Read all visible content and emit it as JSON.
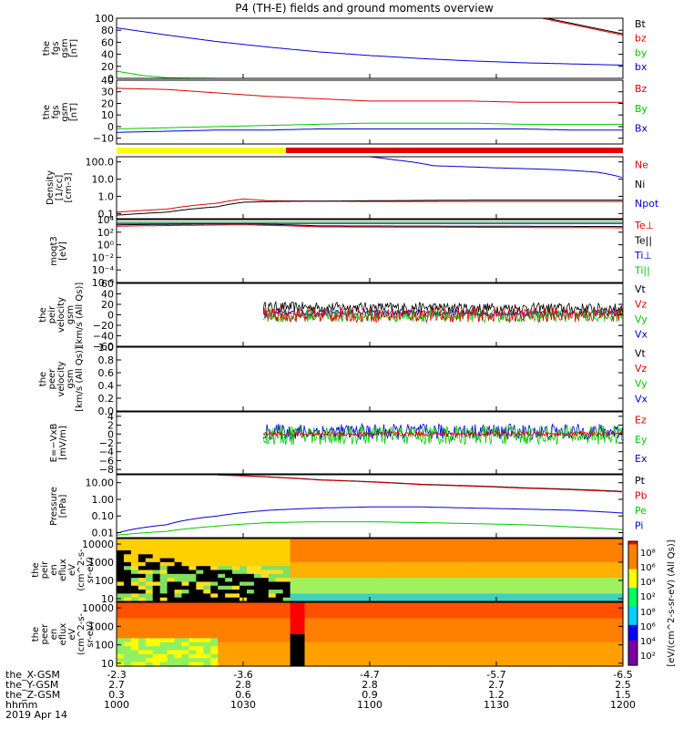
{
  "title": "P4 (TH-E) fields and ground moments overview",
  "date_label": "2019 Apr 14",
  "footer_rows": [
    {
      "label": "the_X-GSM",
      "values": [
        "-2.3",
        "-3.6",
        "-4.7",
        "-5.7",
        "-6.5"
      ]
    },
    {
      "label": "the_Y-GSM",
      "values": [
        "2.7",
        "2.8",
        "2.8",
        "2.7",
        "2.5"
      ]
    },
    {
      "label": "the_Z-GSM",
      "values": [
        "0.3",
        "0.6",
        "0.9",
        "1.2",
        "1.5"
      ]
    },
    {
      "label": "hhmm",
      "values": [
        "1000",
        "1030",
        "1100",
        "1130",
        "1200"
      ]
    }
  ],
  "colors": {
    "black": "#000000",
    "red": "#e00000",
    "green": "#00c800",
    "blue": "#0000d8",
    "yellow": "#ffff00"
  },
  "chart_data": [
    {
      "type": "line",
      "ylabel": [
        "the",
        "fgs",
        "gsm",
        "[nT]"
      ],
      "ylim": [
        0,
        100
      ],
      "ticks": [
        "100",
        "80",
        "60",
        "40",
        "20",
        "0"
      ],
      "tick_values": [
        100,
        80,
        60,
        40,
        20,
        0
      ],
      "xlim": [
        1000,
        1200
      ],
      "legend": [
        {
          "text": "Bt",
          "color": "#000000"
        },
        {
          "text": "bz",
          "color": "#e00000"
        },
        {
          "text": "by",
          "color": "#00c800"
        },
        {
          "text": "bx",
          "color": "#0000d8"
        }
      ],
      "series": [
        {
          "name": "Bt",
          "x": [
            1170,
            1200
          ],
          "y": [
            100,
            74
          ]
        },
        {
          "name": "bz",
          "x": [
            1168,
            1200
          ],
          "y": [
            100,
            72
          ]
        },
        {
          "name": "by",
          "x": [
            1000,
            1010,
            1020,
            1040,
            1100,
            1200
          ],
          "y": [
            12,
            5,
            1,
            0,
            0,
            0
          ]
        },
        {
          "name": "bx",
          "x": [
            1000,
            1020,
            1040,
            1060,
            1080,
            1100,
            1120,
            1140,
            1160,
            1180,
            1200
          ],
          "y": [
            84,
            72,
            61,
            52,
            44,
            38,
            33,
            29,
            26,
            24,
            22
          ]
        }
      ]
    },
    {
      "type": "line",
      "ylabel": [
        "the",
        "fgs",
        "gsm",
        "[nT]"
      ],
      "ylim": [
        -15,
        40
      ],
      "ticks": [
        "40",
        "30",
        "20",
        "10",
        "0",
        "−10"
      ],
      "tick_values": [
        40,
        30,
        20,
        10,
        0,
        -10
      ],
      "xlim": [
        1000,
        1200
      ],
      "legend": [
        {
          "text": "Bz",
          "color": "#e00000"
        },
        {
          "text": "By",
          "color": "#00c800"
        },
        {
          "text": "Bx",
          "color": "#0000d8"
        }
      ],
      "series": [
        {
          "name": "Bz",
          "x": [
            1000,
            1020,
            1040,
            1060,
            1080,
            1100,
            1120,
            1140,
            1160,
            1180,
            1200
          ],
          "y": [
            33,
            32,
            29,
            26,
            24,
            22,
            22,
            22,
            21,
            21,
            21
          ]
        },
        {
          "name": "By",
          "x": [
            1000,
            1020,
            1040,
            1060,
            1080,
            1100,
            1120,
            1140,
            1160,
            1180,
            1200
          ],
          "y": [
            -2,
            -1,
            0,
            1,
            2,
            3,
            3,
            3,
            2,
            2,
            2
          ]
        },
        {
          "name": "Bx",
          "x": [
            1000,
            1020,
            1040,
            1060,
            1080,
            1100,
            1120,
            1140,
            1160,
            1180,
            1200
          ],
          "y": [
            -5,
            -4,
            -3,
            -3,
            -2,
            -2,
            -2,
            -2,
            -2,
            -3,
            -3
          ]
        }
      ]
    },
    {
      "type": "line",
      "ylabel": [
        "Density",
        "[1/cc]",
        "[cm-3]"
      ],
      "yscale": "log",
      "ylim": [
        0.05,
        200
      ],
      "ticks": [
        "100.0",
        "10.0",
        "1.0",
        "0.1"
      ],
      "tick_values": [
        100,
        10,
        1,
        0.1
      ],
      "xlim": [
        1000,
        1200
      ],
      "legend": [
        {
          "text": "Ne",
          "color": "#e00000"
        },
        {
          "text": "Ni",
          "color": "#000000"
        },
        {
          "text": "Npot",
          "color": "#0000d8"
        }
      ],
      "series": [
        {
          "name": "Ne",
          "x": [
            1000,
            1020,
            1040,
            1050,
            1060,
            1100,
            1140,
            1200
          ],
          "y": [
            0.12,
            0.18,
            0.4,
            0.7,
            0.55,
            0.5,
            0.5,
            0.5
          ]
        },
        {
          "name": "Ni",
          "x": [
            1000,
            1020,
            1040,
            1050,
            1060,
            1100,
            1140,
            1200
          ],
          "y": [
            0.08,
            0.12,
            0.25,
            0.45,
            0.5,
            0.55,
            0.6,
            0.6
          ]
        },
        {
          "name": "Npot",
          "x": [
            1100,
            1110,
            1125,
            1150,
            1175,
            1190,
            1200
          ],
          "y": [
            200,
            130,
            60,
            45,
            35,
            25,
            12
          ]
        }
      ]
    },
    {
      "type": "line",
      "ylabel": [
        "moqt3",
        "[eV]"
      ],
      "yscale": "log",
      "ylim": [
        1e-06,
        10000
      ],
      "ticks": [
        "10⁴",
        "10²",
        "10⁰",
        "10⁻²",
        "10⁻⁴",
        "10⁻⁶"
      ],
      "tick_values": [
        10000,
        100,
        1,
        0.01,
        0.0001,
        1e-06
      ],
      "xlim": [
        1000,
        1200
      ],
      "legend": [
        {
          "text": "Te⊥",
          "color": "#e00000"
        },
        {
          "text": "Te||",
          "color": "#000000"
        },
        {
          "text": "Ti⊥",
          "color": "#0000d8"
        },
        {
          "text": "Ti||",
          "color": "#00c800"
        }
      ],
      "series": [
        {
          "name": "Te⊥",
          "x": [
            1000,
            1050,
            1080,
            1200
          ],
          "y": [
            900,
            1500,
            700,
            500
          ]
        },
        {
          "name": "Te||",
          "x": [
            1000,
            1050,
            1080,
            1200
          ],
          "y": [
            1500,
            2200,
            1000,
            800
          ]
        },
        {
          "name": "Ti⊥",
          "x": [
            1000,
            1200
          ],
          "y": [
            2500,
            2500
          ]
        },
        {
          "name": "Ti||",
          "x": [
            1000,
            1200
          ],
          "y": [
            4000,
            4000
          ]
        }
      ]
    },
    {
      "type": "line",
      "ylabel": [
        "the",
        "peir",
        "velocity",
        "gsm",
        "[km/s (All Qs)]"
      ],
      "ylim": [
        -60,
        60
      ],
      "ticks": [
        "60",
        "40",
        "20",
        "0",
        "−20",
        "−40",
        "−60"
      ],
      "tick_values": [
        60,
        40,
        20,
        0,
        -20,
        -40,
        -60
      ],
      "xlim": [
        1000,
        1200
      ],
      "legend": [
        {
          "text": "Vt",
          "color": "#000000"
        },
        {
          "text": "Vz",
          "color": "#e00000"
        },
        {
          "text": "Vy",
          "color": "#00c800"
        },
        {
          "text": "Vx",
          "color": "#0000d8"
        }
      ],
      "series": [
        {
          "name": "Vt",
          "x": [
            1058,
            1200
          ],
          "y": [
            15,
            12
          ],
          "noise": 10
        },
        {
          "name": "Vx",
          "x": [
            1058,
            1200
          ],
          "y": [
            3,
            3
          ],
          "noise": 6
        },
        {
          "name": "Vy",
          "x": [
            1058,
            1200
          ],
          "y": [
            -2,
            -2
          ],
          "noise": 12
        },
        {
          "name": "Vz",
          "x": [
            1058,
            1200
          ],
          "y": [
            0,
            0
          ],
          "noise": 14
        }
      ]
    },
    {
      "type": "line",
      "ylabel": [
        "the",
        "peer",
        "velocity",
        "gsm",
        "[km/s (All Qs)]"
      ],
      "ylim": [
        0,
        1
      ],
      "ticks": [
        "1.0",
        "0.8",
        "0.6",
        "0.4",
        "0.2",
        "0.0"
      ],
      "tick_values": [
        1,
        0.8,
        0.6,
        0.4,
        0.2,
        0
      ],
      "xlim": [
        1000,
        1200
      ],
      "legend": [
        {
          "text": "Vt",
          "color": "#000000"
        },
        {
          "text": "Vz",
          "color": "#e00000"
        },
        {
          "text": "Vy",
          "color": "#00c800"
        },
        {
          "text": "Vx",
          "color": "#0000d8"
        }
      ],
      "series": []
    },
    {
      "type": "line",
      "ylabel": [
        "E=−VxB",
        "[mV/m]"
      ],
      "ylim": [
        -9,
        5
      ],
      "ticks": [
        "4",
        "2",
        "0",
        "−2",
        "−4",
        "−6",
        "−8"
      ],
      "tick_values": [
        4,
        2,
        0,
        -2,
        -4,
        -6,
        -8
      ],
      "xlim": [
        1000,
        1200
      ],
      "legend": [
        {
          "text": "Ez",
          "color": "#e00000"
        },
        {
          "text": "Ey",
          "color": "#00c800"
        },
        {
          "text": "Ex",
          "color": "#0000d8"
        }
      ],
      "series": [
        {
          "name": "Ex",
          "x": [
            1058,
            1200
          ],
          "y": [
            0.5,
            0.5
          ],
          "noise": 1.8
        },
        {
          "name": "Ey",
          "x": [
            1058,
            1200
          ],
          "y": [
            -0.3,
            -0.2
          ],
          "noise": 2.2
        },
        {
          "name": "Ez",
          "x": [
            1058,
            1200
          ],
          "y": [
            0,
            0
          ],
          "noise": 0.5
        }
      ]
    },
    {
      "type": "line",
      "ylabel": [
        "Pressure",
        "[nPa]"
      ],
      "yscale": "log",
      "ylim": [
        0.005,
        30
      ],
      "ticks": [
        "10.00",
        "1.00",
        "0.10",
        "0.01"
      ],
      "tick_values": [
        10,
        1,
        0.1,
        0.01
      ],
      "xlim": [
        1000,
        1200
      ],
      "legend": [
        {
          "text": "Pt",
          "color": "#000000"
        },
        {
          "text": "Pb",
          "color": "#e00000"
        },
        {
          "text": "Pe",
          "color": "#00c800"
        },
        {
          "text": "Pi",
          "color": "#0000d8"
        }
      ],
      "series": [
        {
          "name": "Pt",
          "x": [
            1040,
            1080,
            1120,
            1160,
            1200
          ],
          "y": [
            30,
            15,
            8,
            5,
            3
          ]
        },
        {
          "name": "Pb",
          "x": [
            1040,
            1080,
            1120,
            1160,
            1200
          ],
          "y": [
            29,
            14.5,
            7.6,
            4.7,
            2.8
          ]
        },
        {
          "name": "Pe",
          "x": [
            1000,
            1020,
            1040,
            1060,
            1080,
            1100,
            1120,
            1140,
            1160,
            1180,
            1200
          ],
          "y": [
            0.007,
            0.012,
            0.025,
            0.04,
            0.045,
            0.045,
            0.04,
            0.035,
            0.03,
            0.022,
            0.015
          ]
        },
        {
          "name": "Pi",
          "x": [
            1000,
            1020,
            1040,
            1060,
            1080,
            1100,
            1120,
            1140,
            1160,
            1180,
            1200
          ],
          "y": [
            0.009,
            0.03,
            0.1,
            0.22,
            0.3,
            0.35,
            0.35,
            0.3,
            0.26,
            0.22,
            0.15
          ]
        }
      ]
    },
    {
      "type": "heatmap",
      "ylabel": [
        "the",
        "peir",
        "en",
        "eflux",
        "eV",
        "(cm^2-s-",
        "sr-eV)"
      ],
      "yscale": "log",
      "ylim": [
        7,
        20000
      ],
      "ticks": [
        "10000",
        "1000",
        "100",
        "10"
      ],
      "tick_values": [
        10000,
        1000,
        100,
        10
      ],
      "xlim": [
        1000,
        1200
      ]
    },
    {
      "type": "heatmap",
      "ylabel": [
        "the",
        "peer",
        "en",
        "eflux",
        "eV",
        "(cm^2-s-",
        "sr-eV)"
      ],
      "yscale": "log",
      "ylim": [
        7,
        20000
      ],
      "ticks": [
        "10000",
        "1000",
        "100",
        "10"
      ],
      "tick_values": [
        10000,
        1000,
        100,
        10
      ],
      "xlim": [
        1000,
        1200
      ]
    }
  ],
  "colorbar": {
    "ticks": [
      "10⁸",
      "10⁶",
      "10⁴",
      "10²"
    ],
    "label": "[eV/(cm^2-s-sr-eV) (All Qs)]"
  }
}
